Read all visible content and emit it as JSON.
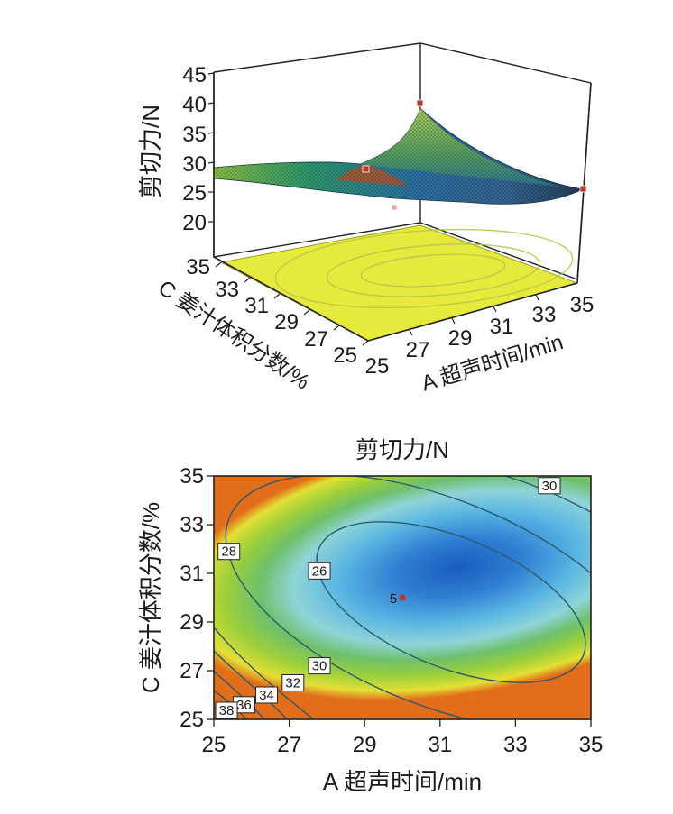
{
  "chart_data": [
    {
      "type": "surface",
      "subtype": "3d-response-surface",
      "zlabel": "剪切力/N",
      "xlabel": "A 超声时间/min",
      "ylabel": "C 姜汁体积分数/%",
      "x_ticks": [
        "25",
        "27",
        "29",
        "31",
        "33",
        "35"
      ],
      "y_ticks": [
        "25",
        "27",
        "29",
        "31",
        "33",
        "35"
      ],
      "z_ticks": [
        "20",
        "25",
        "30",
        "35",
        "40",
        "45"
      ],
      "xlim": [
        25,
        35
      ],
      "ylim": [
        25,
        35
      ],
      "zlim": [
        20,
        45
      ],
      "design_points": [
        {
          "x": 30,
          "y": 30,
          "z": 26.5
        },
        {
          "x": 25,
          "y": 35,
          "z": 35.0
        },
        {
          "x": 35,
          "y": 35,
          "z": 30.5
        },
        {
          "x": 25,
          "y": 25,
          "z": 36.0
        }
      ],
      "colors": {
        "surface_low": "#1f5fb0",
        "surface_mid": "#3f9a8a",
        "surface_high": "#7fc241",
        "floor": "#e8eb4a"
      }
    },
    {
      "type": "contour",
      "title": "剪切力/N",
      "xlabel": "A 超声时间/min",
      "ylabel": "C 姜汁体积分数/%",
      "x_ticks": [
        "25",
        "27",
        "29",
        "31",
        "33",
        "35"
      ],
      "y_ticks": [
        "25",
        "27",
        "29",
        "31",
        "33",
        "35"
      ],
      "xlim": [
        25,
        35
      ],
      "ylim": [
        25,
        35
      ],
      "contour_levels": [
        {
          "value": "26",
          "x": 27.8,
          "y": 31.1
        },
        {
          "value": "28",
          "x": 25.4,
          "y": 31.9
        },
        {
          "value": "30",
          "x": 33.9,
          "y": 34.6
        },
        {
          "value": "30",
          "x": 27.8,
          "y": 27.2
        },
        {
          "value": "32",
          "x": 27.1,
          "y": 26.5
        },
        {
          "value": "34",
          "x": 26.4,
          "y": 26.0
        },
        {
          "value": "36",
          "x": 25.8,
          "y": 25.6
        },
        {
          "value": "38",
          "x": 25.3,
          "y": 25.1
        }
      ],
      "center_point": {
        "label": "5",
        "x": 30,
        "y": 30
      },
      "colors": {
        "min": "#1b5fc2",
        "mid": "#5cc2df",
        "green": "#86c743",
        "yellow": "#e8e03a",
        "max": "#e06a1a"
      }
    }
  ]
}
